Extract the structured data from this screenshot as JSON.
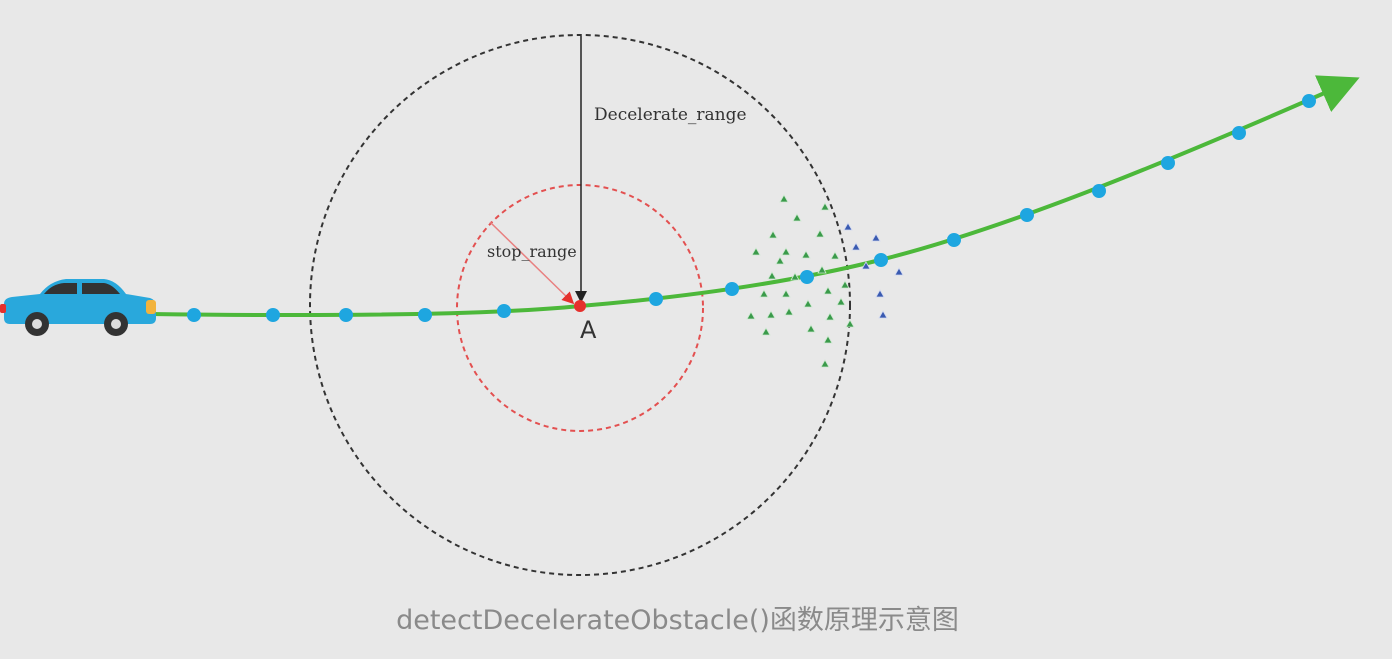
{
  "diagram": {
    "labels": {
      "decelerate_range": "Decelerate_range",
      "stop_range": "stop_range",
      "point_a": "A"
    },
    "caption": "detectDecelerateObstacle()函数原理示意图"
  },
  "colors": {
    "background": "#e8e8e8",
    "path": "#4cb83a",
    "path_points": "#1ea6e0",
    "point_a": "#e5302c",
    "decelerate_circle": "#333333",
    "stop_circle": "#e35050",
    "car_body": "#29a8dc",
    "car_roof": "#333333",
    "obstacle_green": "#3a9a4a",
    "obstacle_blue": "#3a5ab0"
  },
  "icons": {
    "vehicle": "car-icon",
    "obstacles": "triangle-obstacle-icon"
  }
}
